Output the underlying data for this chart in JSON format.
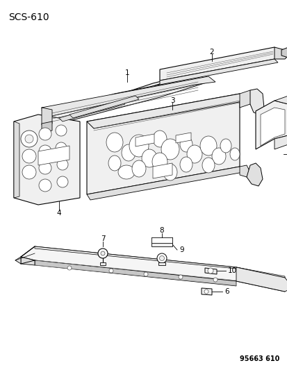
{
  "title": "SCS-610",
  "footer": "95663 610",
  "background_color": "#ffffff",
  "line_color": "#000000",
  "fig_width": 4.14,
  "fig_height": 5.33,
  "dpi": 100,
  "title_fontsize": 10,
  "footer_fontsize": 7
}
